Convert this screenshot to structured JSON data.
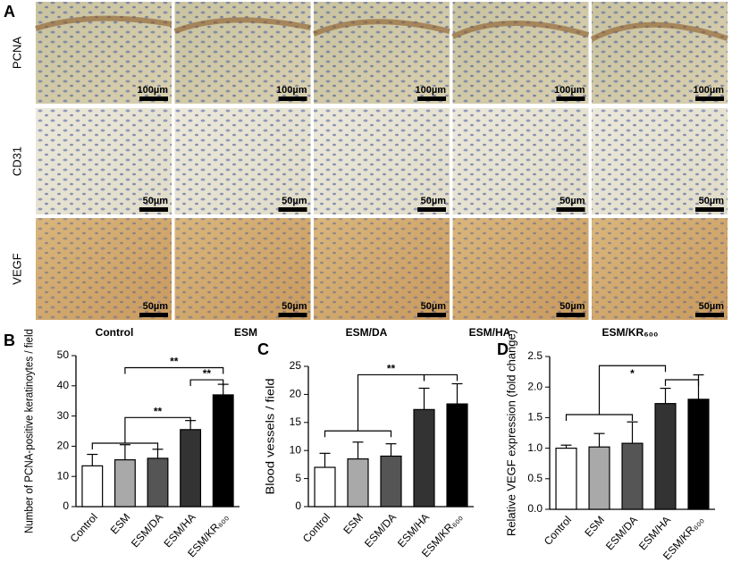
{
  "figure": {
    "panel": "A",
    "rows": [
      "PCNA",
      "CD31",
      "VEGF"
    ],
    "columns": [
      "Control",
      "ESM",
      "ESM/DA",
      "ESM/HA",
      "ESM/KR₆₀₀"
    ],
    "scale_bars": [
      [
        "100µm",
        "100µm",
        "100µm",
        "100µm",
        "100µm"
      ],
      [
        "50µm",
        "50µm",
        "50µm",
        "50µm",
        "50µm"
      ],
      [
        "50µm",
        "50µm",
        "50µm",
        "50µm",
        "50µm"
      ]
    ]
  },
  "chart_data": [
    {
      "type": "bar",
      "panel": "B",
      "y_label": "Number of PCNA-positive keratinoytes / field",
      "categories": [
        "Control",
        "ESM",
        "ESM/DA",
        "ESM/HA",
        "ESM/KR₆₀₀"
      ],
      "values": [
        13.5,
        15.5,
        16,
        25.5,
        37
      ],
      "errors": [
        3.8,
        5,
        3,
        3,
        3.5
      ],
      "colors": [
        "#ffffff",
        "#a9a9a9",
        "#555555",
        "#333333",
        "#000000"
      ],
      "ylim": [
        0,
        50
      ],
      "yticks": [
        0,
        10,
        20,
        30,
        40,
        50
      ],
      "annotations": [
        "**",
        "**",
        "**"
      ]
    },
    {
      "type": "bar",
      "panel": "C",
      "y_label": "Blood vessels / field",
      "categories": [
        "Control",
        "ESM",
        "ESM/DA",
        "ESM/HA",
        "ESM/KR₆₀₀"
      ],
      "values": [
        7,
        8.5,
        9,
        17.3,
        18.3
      ],
      "errors": [
        2.5,
        3,
        2.2,
        3.8,
        3.6
      ],
      "colors": [
        "#ffffff",
        "#a9a9a9",
        "#555555",
        "#333333",
        "#000000"
      ],
      "ylim": [
        0,
        25
      ],
      "yticks": [
        0,
        5,
        10,
        15,
        20,
        25
      ],
      "annotations": [
        "**"
      ]
    },
    {
      "type": "bar",
      "panel": "D",
      "y_label": "Relative VEGF expression (fold change)",
      "categories": [
        "Control",
        "ESM",
        "ESM/DA",
        "ESM/HA",
        "ESM/KR₆₀₀"
      ],
      "values": [
        1.0,
        1.02,
        1.08,
        1.73,
        1.8
      ],
      "errors": [
        0.05,
        0.22,
        0.35,
        0.25,
        0.4
      ],
      "colors": [
        "#ffffff",
        "#a9a9a9",
        "#555555",
        "#333333",
        "#000000"
      ],
      "ylim": [
        0,
        2.5
      ],
      "yticks": [
        {
          "value": 0,
          "label": "0.0"
        },
        0.5,
        {
          "value": 1,
          "label": "1.0"
        },
        1.5,
        {
          "value": 2,
          "label": "2.0"
        },
        2.5
      ],
      "annotations": [
        "*"
      ]
    }
  ]
}
